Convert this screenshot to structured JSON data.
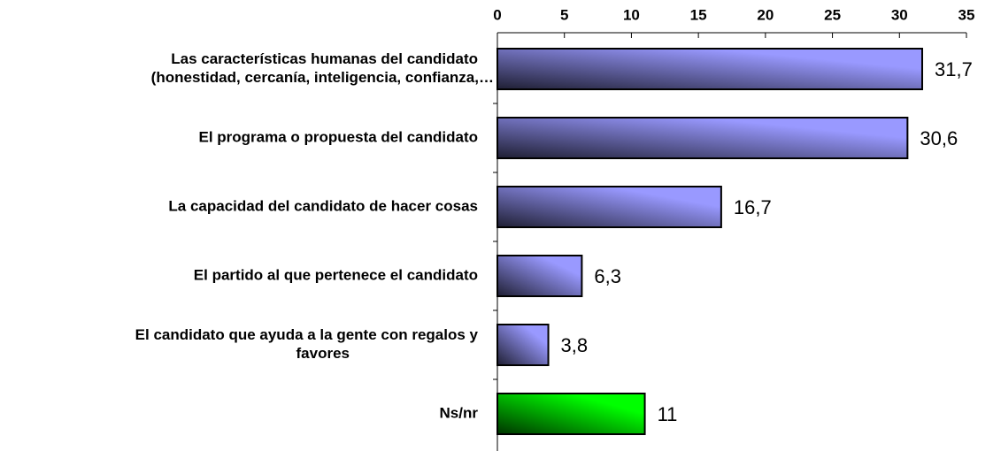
{
  "chart_data": {
    "type": "barh",
    "categories": [
      "Las características humanas del candidato\n(honestidad, cercanía, inteligencia, confianza,…",
      "El programa o propuesta del candidato",
      "La capacidad del candidato de hacer cosas",
      "El partido al que pertenece el candidato",
      "El candidato que ayuda a la gente con regalos y\nfavores",
      "Ns/nr"
    ],
    "values": [
      31.7,
      30.6,
      16.7,
      6.3,
      3.8,
      11
    ],
    "value_labels": [
      "31,7",
      "30,6",
      "16,7",
      "6,3",
      "3,8",
      "11"
    ],
    "colors": [
      "#9999ff",
      "#9999ff",
      "#9999ff",
      "#9999ff",
      "#9999ff",
      "#00ff00"
    ],
    "xlim": [
      0,
      35
    ],
    "xticks": [
      0,
      5,
      10,
      15,
      20,
      25,
      30,
      35
    ],
    "xaxis_position": "top"
  }
}
